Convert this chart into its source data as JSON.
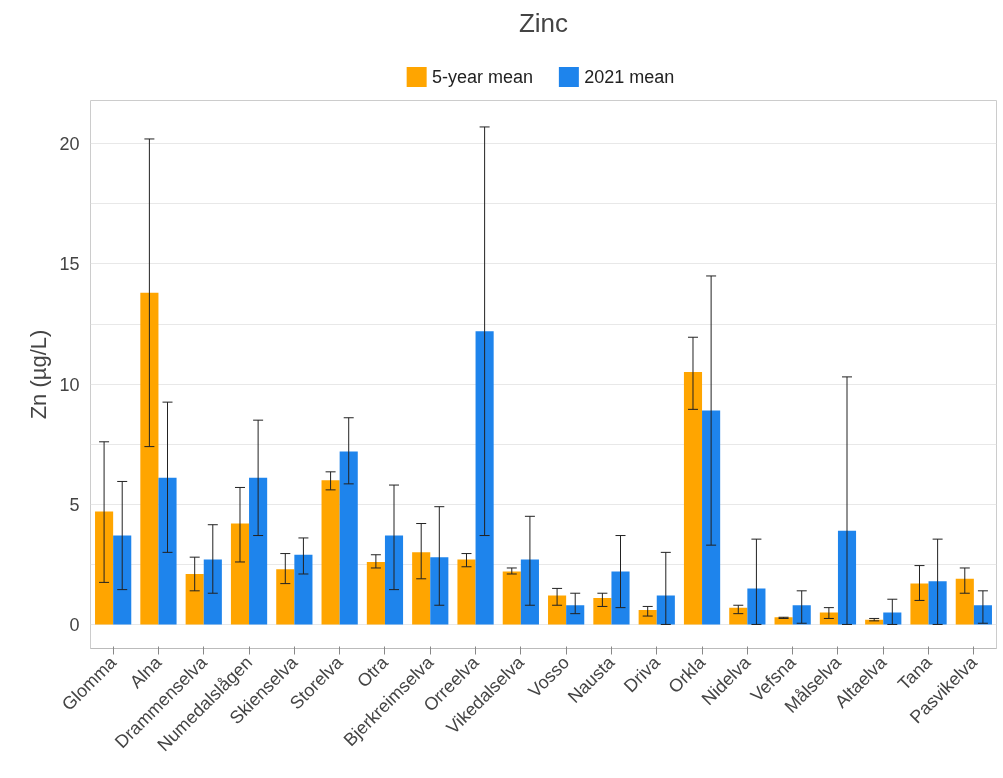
{
  "chart_data": {
    "type": "bar",
    "title": "Zinc",
    "ylabel": "Zn (µg/L)",
    "categories": [
      "Glomma",
      "Alna",
      "Drammenselva",
      "Numedalslågen",
      "Skienselva",
      "Storelva",
      "Otra",
      "Bjerkreimselva",
      "Orreelva",
      "Vikedalselva",
      "Vosso",
      "Nausta",
      "Driva",
      "Orkla",
      "Nidelva",
      "Vefsna",
      "Målselva",
      "Altaelva",
      "Tana",
      "Pasvikelva"
    ],
    "series": [
      {
        "name": "5-year mean",
        "color": "#ffa500",
        "values": [
          4.7,
          13.8,
          2.1,
          4.2,
          2.3,
          6.0,
          2.6,
          3.0,
          2.7,
          2.2,
          1.2,
          1.1,
          0.6,
          10.5,
          0.7,
          0.3,
          0.5,
          0.2,
          1.7,
          1.9
        ],
        "errors": [
          [
            1.75,
            7.6
          ],
          [
            7.4,
            20.2
          ],
          [
            1.4,
            2.8
          ],
          [
            2.6,
            5.7
          ],
          [
            1.7,
            2.95
          ],
          [
            5.6,
            6.35
          ],
          [
            2.35,
            2.9
          ],
          [
            1.9,
            4.2
          ],
          [
            2.4,
            2.95
          ],
          [
            2.1,
            2.35
          ],
          [
            0.8,
            1.5
          ],
          [
            0.75,
            1.3
          ],
          [
            0.35,
            0.75
          ],
          [
            8.95,
            11.95
          ],
          [
            0.45,
            0.8
          ],
          [
            0.25,
            0.3
          ],
          [
            0.25,
            0.7
          ],
          [
            0.15,
            0.25
          ],
          [
            1.0,
            2.45
          ],
          [
            1.3,
            2.35
          ]
        ]
      },
      {
        "name": "2021 mean",
        "color": "#1e84ec",
        "values": [
          3.7,
          6.1,
          2.7,
          6.1,
          2.9,
          7.2,
          3.7,
          2.8,
          12.2,
          2.7,
          0.8,
          2.2,
          1.2,
          8.9,
          1.5,
          0.8,
          3.9,
          0.5,
          1.8,
          0.8
        ],
        "errors": [
          [
            1.45,
            5.95
          ],
          [
            3.0,
            9.25
          ],
          [
            1.3,
            4.15
          ],
          [
            3.7,
            8.5
          ],
          [
            2.1,
            3.6
          ],
          [
            5.85,
            8.6
          ],
          [
            1.45,
            5.8
          ],
          [
            0.8,
            4.9
          ],
          [
            3.7,
            20.7
          ],
          [
            0.8,
            4.5
          ],
          [
            0.45,
            1.3
          ],
          [
            0.7,
            3.7
          ],
          [
            0,
            3.0
          ],
          [
            3.3,
            14.5
          ],
          [
            0,
            3.55
          ],
          [
            0.05,
            1.4
          ],
          [
            0,
            10.3
          ],
          [
            0,
            1.05
          ],
          [
            0,
            3.55
          ],
          [
            0.05,
            1.4
          ]
        ]
      }
    ],
    "ylim": [
      -1.0,
      21.8
    ],
    "yticks": [
      0,
      {
        "value": 2.5,
        "label": null
      },
      5,
      {
        "value": 7.5,
        "label": null
      },
      10,
      {
        "value": 12.5,
        "label": null
      },
      15,
      {
        "value": 17.5,
        "label": null
      },
      20
    ],
    "grid": "y",
    "legend": "top"
  }
}
